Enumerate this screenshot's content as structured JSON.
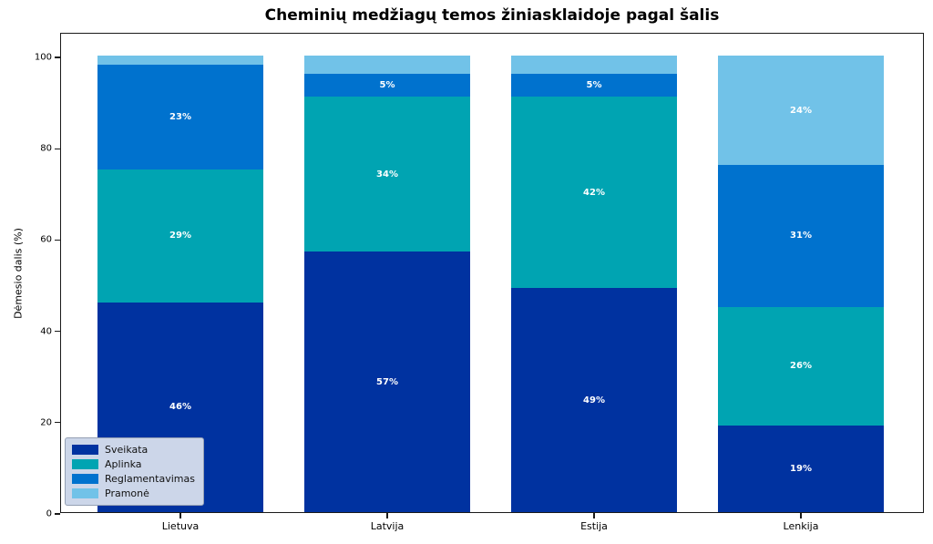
{
  "chart_data": {
    "type": "bar",
    "stacked": true,
    "title": "Cheminių medžiagų temos žiniasklaidoje pagal šalis",
    "xlabel": "",
    "ylabel": "Dėmesio dalis (%)",
    "categories": [
      "Lietuva",
      "Latvija",
      "Estija",
      "Lenkija"
    ],
    "series": [
      {
        "name": "Sveikata",
        "color": "#0032a0",
        "values": [
          46,
          57,
          49,
          19
        ]
      },
      {
        "name": "Aplinka",
        "color": "#00a4b2",
        "values": [
          29,
          34,
          42,
          26
        ]
      },
      {
        "name": "Reglamentavimas",
        "color": "#0072ce",
        "values": [
          23,
          5,
          5,
          31
        ]
      },
      {
        "name": "Pramonė",
        "color": "#71c2e8",
        "values": [
          2,
          4,
          4,
          24
        ]
      }
    ],
    "bar_label_format": "{value}%",
    "bar_label_min_value": 5,
    "ylim": [
      0,
      105
    ],
    "yticks": [
      0,
      20,
      40,
      60,
      80,
      100
    ],
    "legend_position": "lower left",
    "grid": false,
    "colors": {
      "legend_background": "#ccd6e9",
      "legend_border": "#94a0b4",
      "axis": "#1a1a1a",
      "bar_label_text": "#ffffff"
    }
  }
}
